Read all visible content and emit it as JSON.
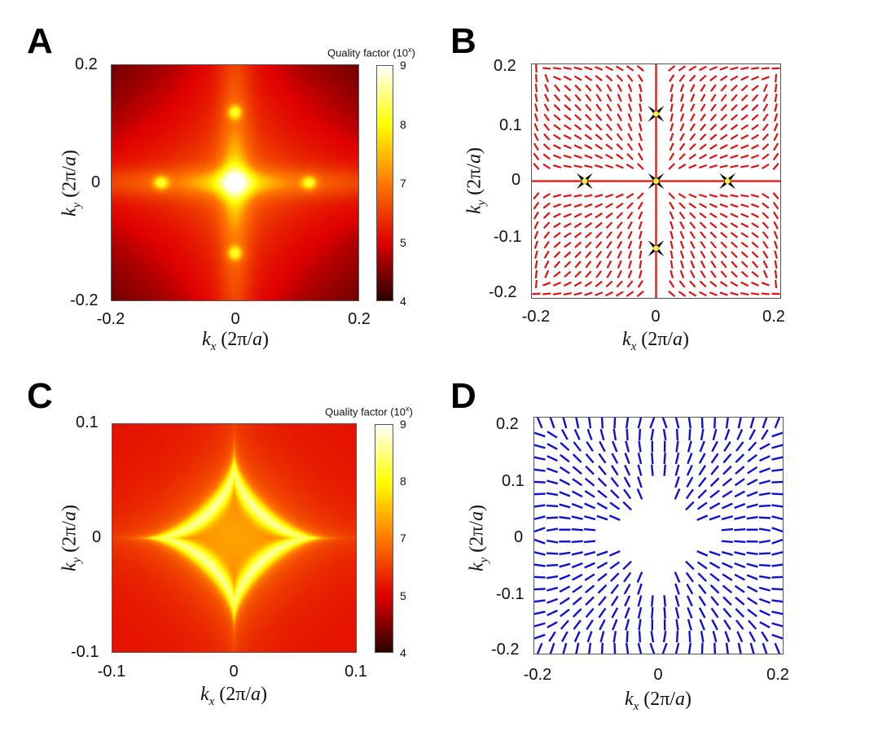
{
  "panels": {
    "a": {
      "letter": "A"
    },
    "b": {
      "letter": "B"
    },
    "c": {
      "letter": "C"
    },
    "d": {
      "letter": "D"
    }
  },
  "axis_label": {
    "k": "k",
    "x_sub": "x",
    "y_sub": "y",
    "unit_pre": " (2π/",
    "unit_a": "a",
    "unit_post": ")"
  },
  "colorbar": {
    "title": "Quality factor (10",
    "title_sup": "x",
    "title_end": ")",
    "ticks": [
      "9",
      "8",
      "7",
      "5",
      "4"
    ],
    "colors": [
      "#2a0000",
      "#e00000",
      "#ff7a00",
      "#ffff00",
      "#ffffff"
    ]
  },
  "chart_data": [
    {
      "panel": "A",
      "type": "heatmap",
      "xlabel": "kx (2π/a)",
      "ylabel": "ky (2π/a)",
      "xlim": [
        -0.2,
        0.2
      ],
      "ylim": [
        -0.2,
        0.2
      ],
      "xticks": [
        "-0.2",
        "0",
        "0.2"
      ],
      "yticks": [
        "0.2",
        "0",
        "-0.2"
      ],
      "colorbar_label": "Quality factor (10^x)",
      "colorbar_range": [
        4,
        9
      ],
      "features": "bright cross along kx=0 and ky=0; maxima at (±0.12, 0) and (0, ±0.12); dark corners"
    },
    {
      "panel": "B",
      "type": "vector-field",
      "color": "#e01010",
      "xlabel": "kx (2π/a)",
      "ylabel": "ky (2π/a)",
      "xlim": [
        -0.21,
        0.21
      ],
      "ylim": [
        -0.21,
        0.21
      ],
      "xticks": [
        "-0.2",
        "0",
        "0.2"
      ],
      "yticks": [
        "0.2",
        "0.1",
        "0",
        "-0.1",
        "-0.2"
      ],
      "singularities": [
        [
          0,
          0.12
        ],
        [
          -0.12,
          0
        ],
        [
          0,
          0
        ],
        [
          0.12,
          0
        ],
        [
          0,
          -0.12
        ]
      ]
    },
    {
      "panel": "C",
      "type": "heatmap",
      "xlabel": "kx (2π/a)",
      "ylabel": "ky (2π/a)",
      "xlim": [
        -0.1,
        0.1
      ],
      "ylim": [
        -0.1,
        0.1
      ],
      "xticks": [
        "-0.1",
        "0",
        "0.1"
      ],
      "yticks": [
        "0.1",
        "0",
        "-0.1"
      ],
      "colorbar_label": "Quality factor (10^x)",
      "colorbar_range": [
        4,
        9
      ],
      "features": "bright four-pointed star (astroid) ridge with tips at (±0.06, 0) and (0, ±0.06)"
    },
    {
      "panel": "D",
      "type": "vector-field",
      "color": "#1010d0",
      "xlabel": "kx (2π/a)",
      "ylabel": "ky (2π/a)",
      "xlim": [
        -0.21,
        0.21
      ],
      "ylim": [
        -0.21,
        0.21
      ],
      "xticks": [
        "-0.2",
        "0",
        "0.2"
      ],
      "yticks": [
        "0.2",
        "0.1",
        "0",
        "-0.1",
        "-0.2"
      ],
      "features": "star-shaped empty region at center reaching about ±0.13 along axes"
    }
  ]
}
